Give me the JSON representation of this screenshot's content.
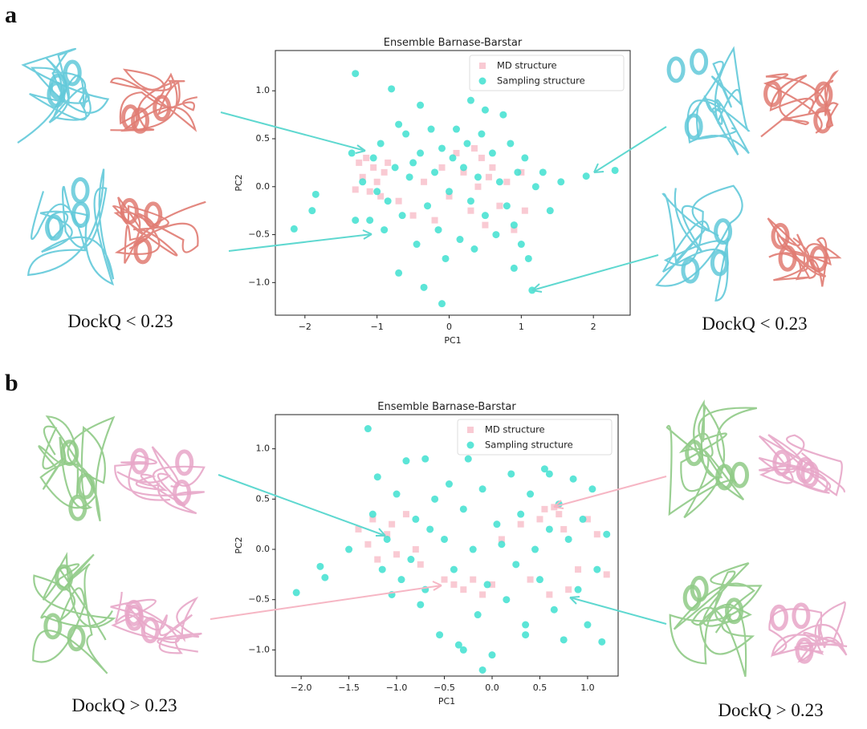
{
  "panels": [
    {
      "label": "a",
      "captions": [
        "DockQ < 0.23",
        "DockQ < 0.23"
      ]
    },
    {
      "label": "b",
      "captions": [
        "DockQ > 0.23",
        "DockQ > 0.23"
      ]
    }
  ],
  "chart_data": [
    {
      "type": "scatter",
      "title": "Ensemble Barnase-Barstar",
      "x_label": "PC1",
      "y_label": "PC2",
      "xlim": [
        -2.41,
        2.51
      ],
      "ylim": [
        -1.34,
        1.42
      ],
      "xticks": [
        {
          "value": -2,
          "label": "−2"
        },
        {
          "value": -1,
          "label": "−1"
        },
        0,
        1,
        2
      ],
      "yticks": [
        {
          "value": -1.0,
          "label": "−1.0"
        },
        {
          "value": -0.5,
          "label": "−0.5"
        },
        {
          "value": 0.0,
          "label": "0.0"
        },
        0.5,
        {
          "value": 1.0,
          "label": "1.0"
        }
      ],
      "legend": "upper right",
      "series": [
        {
          "name": "MD structure",
          "color": "#f7b8c4",
          "marker": "square",
          "x": [
            -1.25,
            -1.2,
            -1.15,
            -1.1,
            -1.05,
            -1.0,
            -0.95,
            -0.9,
            -0.85,
            -0.7,
            -0.5,
            -0.35,
            -0.2,
            -0.1,
            0.0,
            0.1,
            0.2,
            0.3,
            0.35,
            0.4,
            0.45,
            0.5,
            0.55,
            0.6,
            0.7,
            0.8,
            0.9,
            1.0,
            1.05,
            -1.3
          ],
          "values": [
            0.25,
            0.1,
            0.3,
            -0.05,
            0.2,
            0.05,
            -0.1,
            0.15,
            0.25,
            -0.15,
            -0.3,
            0.05,
            -0.35,
            0.2,
            -0.1,
            0.35,
            0.15,
            -0.25,
            0.4,
            0.0,
            0.3,
            -0.4,
            0.1,
            0.2,
            -0.2,
            0.05,
            -0.45,
            0.15,
            -0.25,
            -0.03
          ]
        },
        {
          "name": "Sampling structure",
          "color": "#40e0d0",
          "marker": "circle",
          "x": [
            -2.15,
            -1.85,
            -1.9,
            -1.35,
            -1.3,
            -1.2,
            -1.1,
            -1.05,
            -1.0,
            -0.95,
            -0.9,
            -0.85,
            -0.8,
            -0.75,
            -0.7,
            -0.65,
            -0.6,
            -0.55,
            -0.5,
            -0.45,
            -0.4,
            -0.35,
            -0.3,
            -0.25,
            -0.2,
            -0.15,
            -0.1,
            -0.05,
            0.0,
            0.05,
            0.1,
            0.15,
            0.2,
            0.25,
            0.3,
            0.35,
            0.4,
            0.45,
            0.5,
            0.55,
            0.6,
            0.65,
            0.7,
            0.75,
            0.8,
            0.85,
            0.9,
            0.95,
            1.0,
            1.05,
            1.1,
            1.15,
            1.2,
            1.3,
            1.4,
            1.55,
            1.9,
            2.3,
            -1.3,
            -0.1,
            0.5,
            -0.7,
            -0.4,
            0.3,
            0.9
          ],
          "values": [
            -0.44,
            -0.08,
            -0.25,
            0.35,
            1.18,
            0.05,
            -0.35,
            0.3,
            -0.05,
            0.45,
            -0.45,
            -0.15,
            1.02,
            0.2,
            -0.9,
            -0.3,
            0.55,
            0.1,
            0.25,
            -0.6,
            0.35,
            -1.05,
            -0.2,
            0.6,
            0.15,
            -0.45,
            0.4,
            -0.75,
            -0.05,
            0.3,
            0.6,
            -0.55,
            0.2,
            0.45,
            -0.15,
            -0.65,
            0.1,
            0.55,
            -0.3,
            1.27,
            0.35,
            -0.5,
            0.05,
            0.75,
            -0.2,
            0.45,
            -0.85,
            0.15,
            -0.6,
            0.3,
            -0.75,
            -1.08,
            0.0,
            0.15,
            -0.25,
            0.05,
            0.11,
            0.17,
            -0.35,
            -1.22,
            0.8,
            0.65,
            0.85,
            0.9,
            -0.4
          ]
        }
      ]
    },
    {
      "type": "scatter",
      "title": "Ensemble Barnase-Barstar",
      "x_label": "PC1",
      "y_label": "PC2",
      "xlim": [
        -2.27,
        1.32
      ],
      "ylim": [
        -1.26,
        1.34
      ],
      "xticks": [
        {
          "value": -2.0,
          "label": "−2.0"
        },
        {
          "value": -1.5,
          "label": "−1.5"
        },
        {
          "value": -1.0,
          "label": "−1.0"
        },
        {
          "value": -0.5,
          "label": "−0.5"
        },
        {
          "value": 0.0,
          "label": "0.0"
        },
        0.5,
        {
          "value": 1.0,
          "label": "1.0"
        }
      ],
      "yticks": [
        {
          "value": -1.0,
          "label": "−1.0"
        },
        {
          "value": -0.5,
          "label": "−0.5"
        },
        {
          "value": 0.0,
          "label": "0.0"
        },
        0.5,
        {
          "value": 1.0,
          "label": "1.0"
        }
      ],
      "legend": "upper right",
      "series": [
        {
          "name": "MD structure",
          "color": "#f7b8c4",
          "marker": "square",
          "x": [
            -1.4,
            -1.3,
            -1.25,
            -1.2,
            -1.1,
            -1.05,
            -1.0,
            -0.9,
            -0.8,
            -0.75,
            -0.5,
            -0.4,
            -0.3,
            -0.2,
            -0.1,
            0.0,
            0.1,
            0.3,
            0.4,
            0.5,
            0.55,
            0.6,
            0.7,
            0.75,
            0.8,
            0.9,
            1.0,
            1.1,
            1.2,
            0.65
          ],
          "values": [
            0.2,
            0.05,
            0.3,
            -0.1,
            0.15,
            0.25,
            -0.05,
            0.35,
            0.0,
            -0.15,
            -0.3,
            -0.35,
            -0.4,
            -0.3,
            -0.45,
            -0.35,
            0.1,
            0.25,
            -0.3,
            0.3,
            0.4,
            -0.45,
            0.35,
            0.2,
            -0.4,
            -0.2,
            0.3,
            0.15,
            -0.25,
            0.42
          ]
        },
        {
          "name": "Sampling structure",
          "color": "#40e0d0",
          "marker": "circle",
          "x": [
            -2.05,
            -1.8,
            -1.75,
            -1.5,
            -1.3,
            -1.25,
            -1.2,
            -1.15,
            -1.1,
            -1.05,
            -1.0,
            -0.95,
            -0.9,
            -0.85,
            -0.8,
            -0.75,
            -0.7,
            -0.65,
            -0.6,
            -0.55,
            -0.5,
            -0.45,
            -0.4,
            -0.35,
            -0.3,
            -0.25,
            -0.2,
            -0.15,
            -0.1,
            -0.05,
            0.0,
            0.05,
            0.1,
            0.15,
            0.2,
            0.25,
            0.3,
            0.35,
            0.4,
            0.45,
            0.5,
            0.55,
            0.6,
            0.65,
            0.7,
            0.75,
            0.8,
            0.85,
            0.9,
            0.95,
            1.0,
            1.05,
            1.1,
            1.15,
            1.2,
            -0.3,
            0.35,
            -0.1,
            0.6,
            -0.7
          ],
          "values": [
            -0.43,
            -0.17,
            -0.28,
            0.0,
            1.2,
            0.35,
            0.72,
            -0.2,
            0.1,
            -0.45,
            0.55,
            -0.3,
            0.88,
            -0.1,
            0.3,
            -0.55,
            -0.4,
            0.2,
            0.5,
            -0.85,
            0.1,
            0.65,
            -0.2,
            -0.95,
            0.4,
            0.9,
            0.0,
            -0.65,
            0.6,
            -0.35,
            -1.05,
            0.25,
            0.05,
            -0.5,
            0.75,
            -0.15,
            0.35,
            -0.75,
            0.55,
            0.0,
            -0.3,
            0.8,
            0.2,
            -0.6,
            0.45,
            -0.9,
            0.1,
            0.7,
            -0.4,
            0.3,
            -0.75,
            0.6,
            -0.2,
            -0.92,
            0.15,
            -1.0,
            -0.85,
            -1.2,
            0.75,
            0.9
          ]
        }
      ]
    }
  ]
}
